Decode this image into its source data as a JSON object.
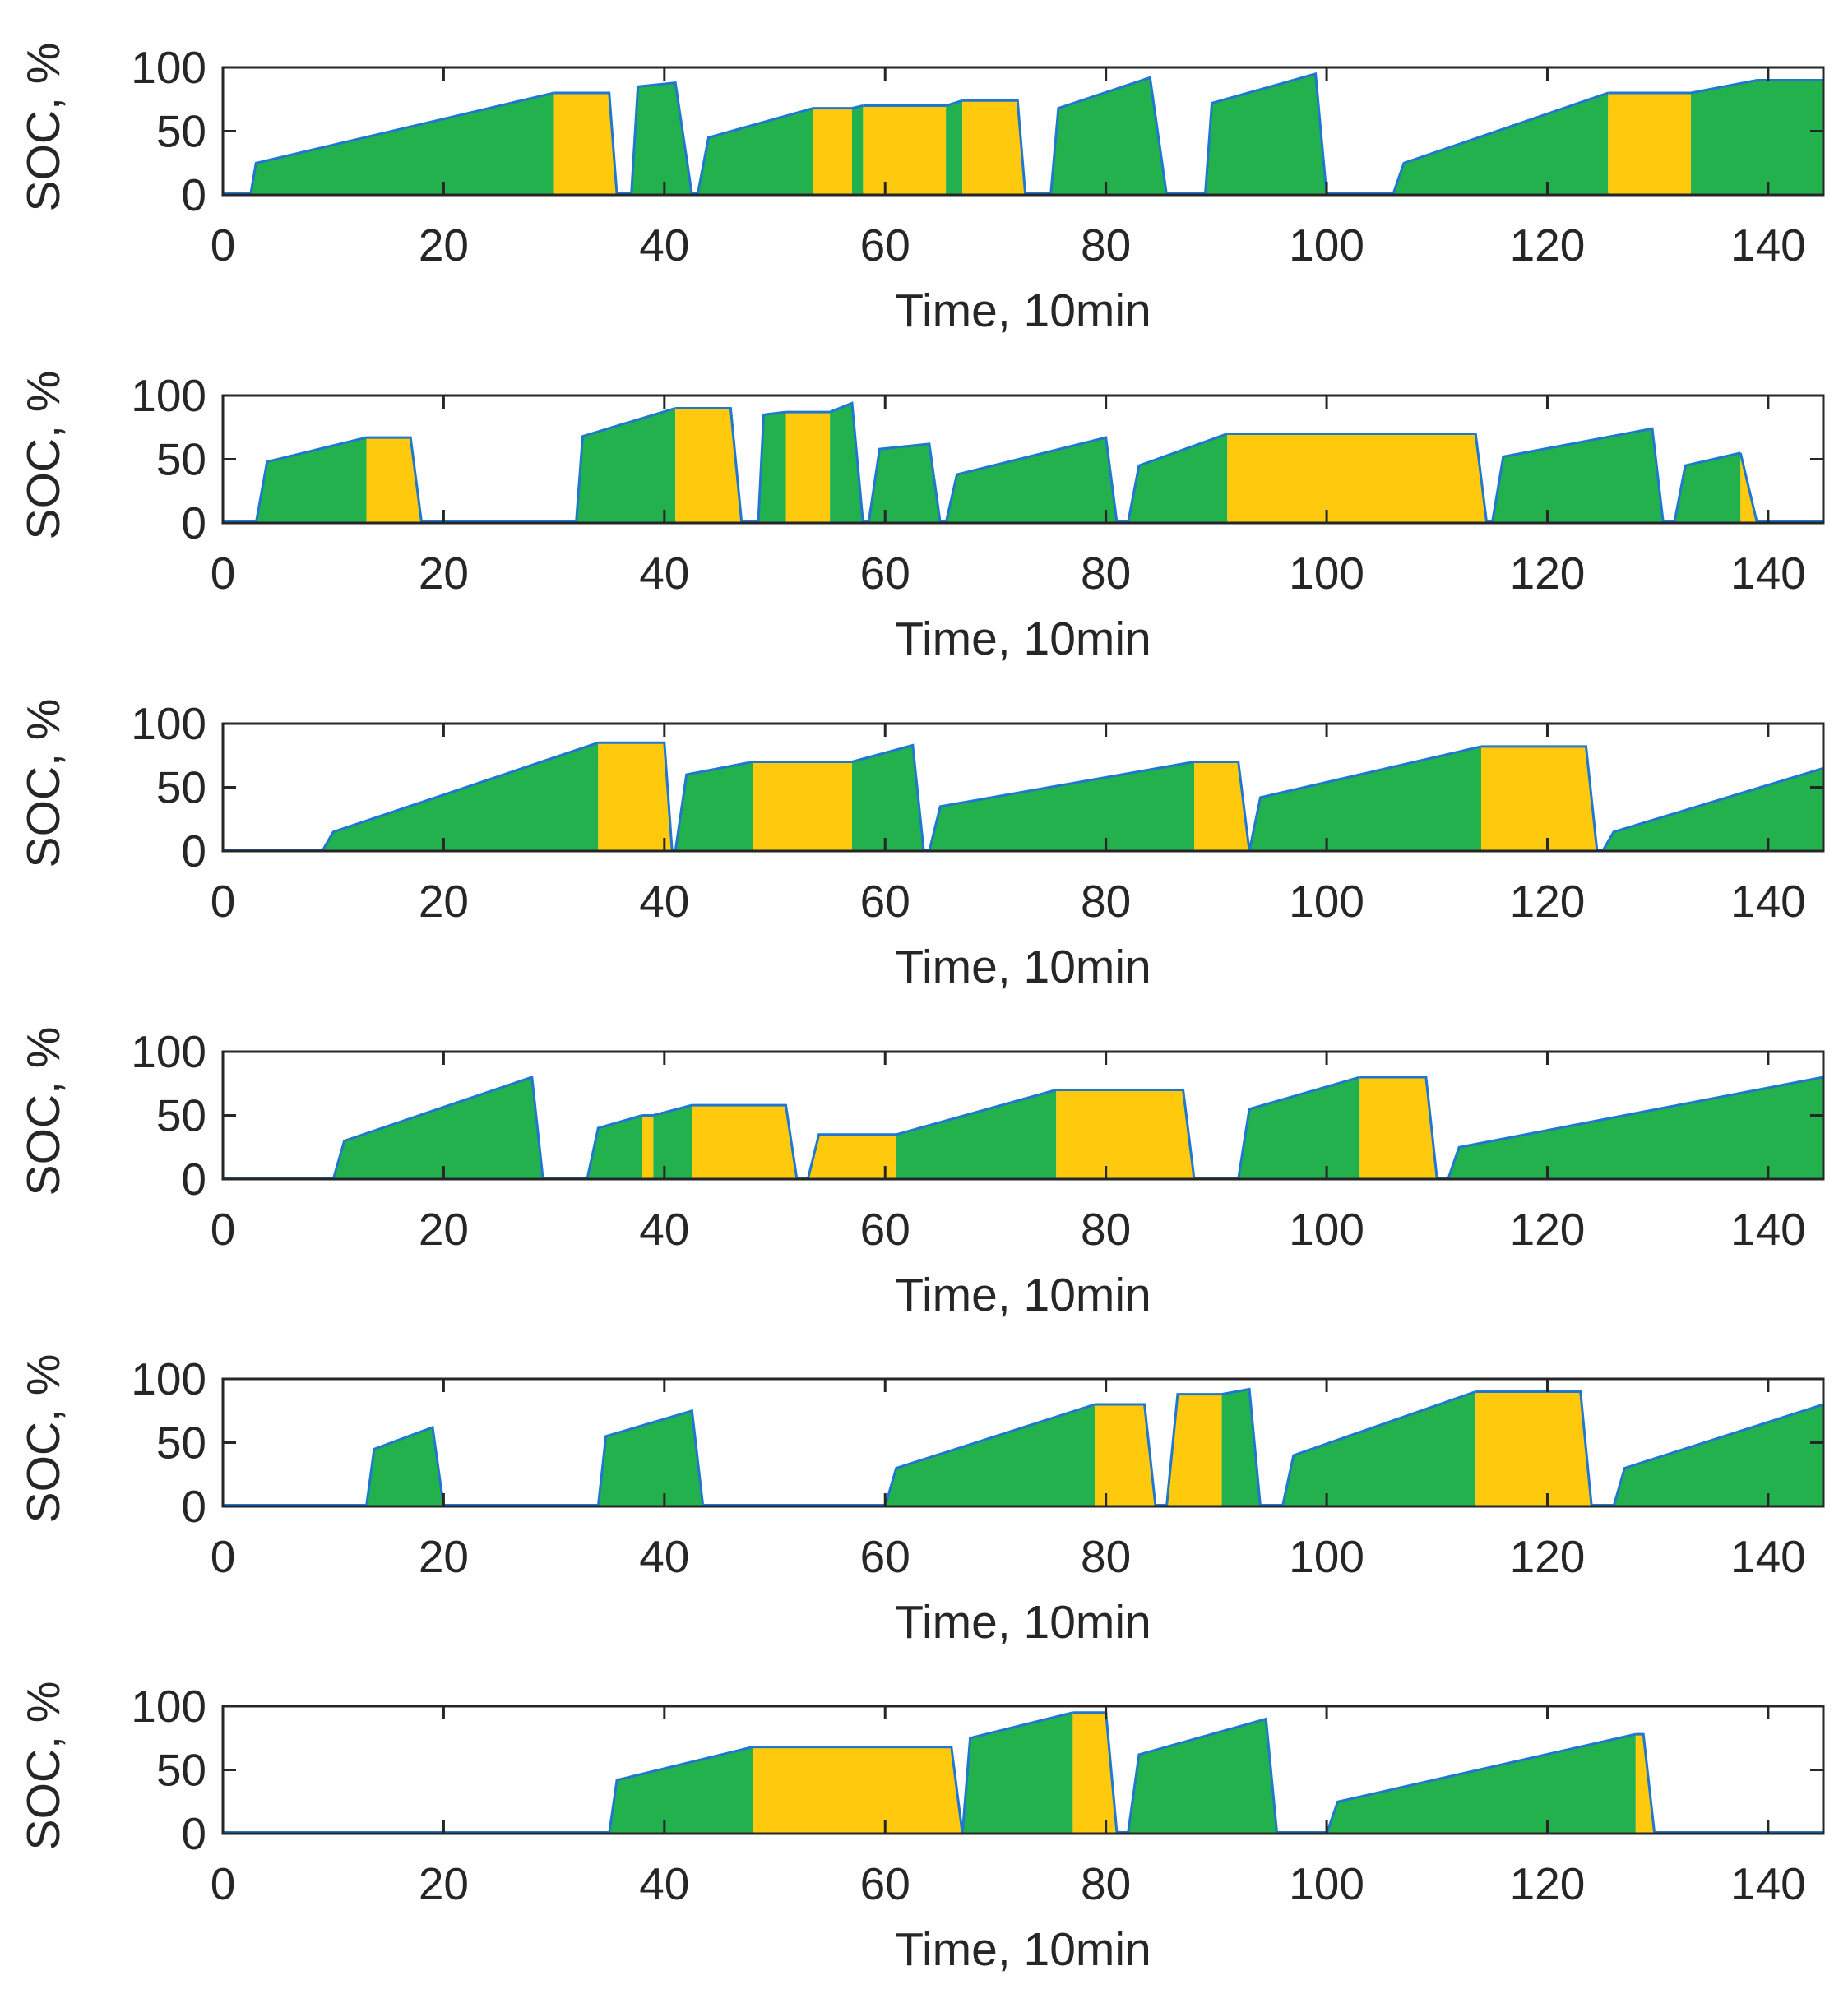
{
  "chart_data": {
    "type": "area",
    "colors": {
      "charging": "#22b14c",
      "idle": "#ffc90e",
      "outline": "#1f77d0",
      "axis": "#262626"
    },
    "legend": {
      "charging": "green fill",
      "idle": "yellow fill"
    },
    "panels": [
      {
        "xlabel": "Time, 10min",
        "ylabel": "SOC, %",
        "xlim": [
          0,
          145
        ],
        "ylim": [
          0,
          100
        ],
        "xticks": [
          "0",
          "20",
          "40",
          "60",
          "80",
          "100",
          "120",
          "140"
        ],
        "yticks": [
          "0",
          "50",
          "100"
        ],
        "segments": [
          {
            "x": [
              2.5,
              3,
              30,
              30
            ],
            "y": [
              0,
              25,
              80,
              80
            ],
            "state": "charging"
          },
          {
            "x": [
              30,
              35,
              35.7
            ],
            "y": [
              80,
              80,
              0
            ],
            "state": "idle"
          },
          {
            "x": [
              37,
              37.6,
              41,
              42.5
            ],
            "y": [
              0,
              85,
              88,
              0
            ],
            "state": "charging"
          },
          {
            "x": [
              43,
              44,
              53.5
            ],
            "y": [
              0,
              45,
              68
            ],
            "state": "charging"
          },
          {
            "x": [
              53.5,
              57
            ],
            "y": [
              68,
              68
            ],
            "state": "idle"
          },
          {
            "x": [
              57,
              58
            ],
            "y": [
              68,
              70
            ],
            "state": "charging"
          },
          {
            "x": [
              58,
              65.5
            ],
            "y": [
              70,
              70
            ],
            "state": "idle"
          },
          {
            "x": [
              65.5,
              67
            ],
            "y": [
              70,
              74
            ],
            "state": "charging"
          },
          {
            "x": [
              67,
              72,
              72.7
            ],
            "y": [
              74,
              74,
              0
            ],
            "state": "idle"
          },
          {
            "x": [
              75,
              75.7,
              84,
              85.5
            ],
            "y": [
              0,
              68,
              92,
              0
            ],
            "state": "charging"
          },
          {
            "x": [
              89,
              89.6,
              99,
              100
            ],
            "y": [
              0,
              72,
              95,
              0
            ],
            "state": "charging"
          },
          {
            "x": [
              106,
              107,
              125.5
            ],
            "y": [
              0,
              25,
              80
            ],
            "state": "charging"
          },
          {
            "x": [
              125.5,
              133
            ],
            "y": [
              80,
              80
            ],
            "state": "idle"
          },
          {
            "x": [
              133,
              139,
              145
            ],
            "y": [
              80,
              90,
              90
            ],
            "state": "charging"
          }
        ]
      },
      {
        "xlabel": "Time, 10min",
        "ylabel": "SOC, %",
        "xlim": [
          0,
          145
        ],
        "ylim": [
          0,
          100
        ],
        "xticks": [
          "0",
          "20",
          "40",
          "60",
          "80",
          "100",
          "120",
          "140"
        ],
        "yticks": [
          "0",
          "50",
          "100"
        ],
        "segments": [
          {
            "x": [
              3,
              4,
              13
            ],
            "y": [
              0,
              48,
              67
            ],
            "state": "charging"
          },
          {
            "x": [
              13,
              17,
              18
            ],
            "y": [
              67,
              67,
              0
            ],
            "state": "idle"
          },
          {
            "x": [
              32,
              32.6,
              41
            ],
            "y": [
              0,
              68,
              90
            ],
            "state": "charging"
          },
          {
            "x": [
              41,
              46,
              47
            ],
            "y": [
              90,
              90,
              0
            ],
            "state": "idle"
          },
          {
            "x": [
              48.5,
              49,
              51
            ],
            "y": [
              0,
              85,
              87
            ],
            "state": "charging"
          },
          {
            "x": [
              51,
              55
            ],
            "y": [
              87,
              87
            ],
            "state": "idle"
          },
          {
            "x": [
              55,
              57,
              58
            ],
            "y": [
              87,
              94,
              0
            ],
            "state": "charging"
          },
          {
            "x": [
              58.5,
              59.5,
              64,
              65
            ],
            "y": [
              0,
              58,
              62,
              0
            ],
            "state": "charging"
          },
          {
            "x": [
              65.5,
              66.5,
              80,
              81
            ],
            "y": [
              0,
              38,
              67,
              0
            ],
            "state": "charging"
          },
          {
            "x": [
              82,
              83,
              91
            ],
            "y": [
              0,
              45,
              70
            ],
            "state": "charging"
          },
          {
            "x": [
              91,
              113.5,
              114.5
            ],
            "y": [
              70,
              70,
              0
            ],
            "state": "idle"
          },
          {
            "x": [
              115,
              116,
              129.5,
              130.5
            ],
            "y": [
              0,
              52,
              74,
              0
            ],
            "state": "charging"
          },
          {
            "x": [
              131.5,
              132.5,
              137.5
            ],
            "y": [
              0,
              45,
              55
            ],
            "state": "charging"
          },
          {
            "x": [
              137.5,
              139
            ],
            "y": [
              55,
              0
            ],
            "state": "idle"
          }
        ]
      },
      {
        "xlabel": "Time, 10min",
        "ylabel": "SOC, %",
        "xlim": [
          0,
          145
        ],
        "ylim": [
          0,
          100
        ],
        "xticks": [
          "0",
          "20",
          "40",
          "60",
          "80",
          "100",
          "120",
          "140"
        ],
        "yticks": [
          "0",
          "50",
          "100"
        ],
        "segments": [
          {
            "x": [
              9,
              10,
              34
            ],
            "y": [
              0,
              15,
              85
            ],
            "state": "charging"
          },
          {
            "x": [
              34,
              40,
              40.7
            ],
            "y": [
              85,
              85,
              0
            ],
            "state": "idle"
          },
          {
            "x": [
              41,
              42,
              48
            ],
            "y": [
              0,
              60,
              70
            ],
            "state": "charging"
          },
          {
            "x": [
              48,
              57
            ],
            "y": [
              70,
              70
            ],
            "state": "idle"
          },
          {
            "x": [
              57,
              62.5,
              63.5
            ],
            "y": [
              70,
              83,
              0
            ],
            "state": "charging"
          },
          {
            "x": [
              64,
              65,
              88
            ],
            "y": [
              0,
              35,
              70
            ],
            "state": "charging"
          },
          {
            "x": [
              88,
              92,
              93
            ],
            "y": [
              70,
              70,
              0
            ],
            "state": "idle"
          },
          {
            "x": [
              93,
              94,
              114
            ],
            "y": [
              0,
              42,
              82
            ],
            "state": "charging"
          },
          {
            "x": [
              114,
              123.5,
              124.5
            ],
            "y": [
              82,
              82,
              0
            ],
            "state": "idle"
          },
          {
            "x": [
              125,
              126,
              145
            ],
            "y": [
              0,
              15,
              65
            ],
            "state": "charging"
          }
        ]
      },
      {
        "xlabel": "Time, 10min",
        "ylabel": "SOC, %",
        "xlim": [
          0,
          145
        ],
        "ylim": [
          0,
          100
        ],
        "xticks": [
          "0",
          "20",
          "40",
          "60",
          "80",
          "100",
          "120",
          "140"
        ],
        "yticks": [
          "0",
          "50",
          "100"
        ],
        "segments": [
          {
            "x": [
              10,
              11,
              28,
              29
            ],
            "y": [
              0,
              30,
              80,
              0
            ],
            "state": "charging"
          },
          {
            "x": [
              33,
              34,
              38
            ],
            "y": [
              0,
              40,
              50
            ],
            "state": "charging"
          },
          {
            "x": [
              38,
              39
            ],
            "y": [
              50,
              50
            ],
            "state": "idle"
          },
          {
            "x": [
              39,
              42.5
            ],
            "y": [
              50,
              58
            ],
            "state": "charging"
          },
          {
            "x": [
              42.5,
              51,
              52
            ],
            "y": [
              58,
              58,
              0
            ],
            "state": "idle"
          },
          {
            "x": [
              53,
              54,
              61
            ],
            "y": [
              0,
              35,
              35
            ],
            "state": "idle"
          },
          {
            "x": [
              61,
              75.5
            ],
            "y": [
              35,
              70
            ],
            "state": "charging"
          },
          {
            "x": [
              75.5,
              87,
              88
            ],
            "y": [
              70,
              70,
              0
            ],
            "state": "idle"
          },
          {
            "x": [
              92,
              93,
              103
            ],
            "y": [
              0,
              55,
              80
            ],
            "state": "charging"
          },
          {
            "x": [
              103,
              109,
              110
            ],
            "y": [
              80,
              80,
              0
            ],
            "state": "idle"
          },
          {
            "x": [
              111,
              112,
              145
            ],
            "y": [
              0,
              25,
              80
            ],
            "state": "charging"
          }
        ]
      },
      {
        "xlabel": "Time, 10min",
        "ylabel": "SOC, %",
        "xlim": [
          0,
          145
        ],
        "ylim": [
          0,
          100
        ],
        "xticks": [
          "0",
          "20",
          "40",
          "60",
          "80",
          "100",
          "120",
          "140"
        ],
        "yticks": [
          "0",
          "50",
          "100"
        ],
        "segments": [
          {
            "x": [
              13,
              13.7,
              19,
              20
            ],
            "y": [
              0,
              45,
              62,
              0
            ],
            "state": "charging"
          },
          {
            "x": [
              34,
              34.7,
              42.5,
              43.5
            ],
            "y": [
              0,
              55,
              75,
              0
            ],
            "state": "charging"
          },
          {
            "x": [
              60,
              61,
              79
            ],
            "y": [
              0,
              30,
              80
            ],
            "state": "charging"
          },
          {
            "x": [
              79,
              83.5,
              84.5
            ],
            "y": [
              80,
              80,
              0
            ],
            "state": "idle"
          },
          {
            "x": [
              85.5,
              86.5,
              90.5
            ],
            "y": [
              0,
              88,
              88
            ],
            "state": "idle"
          },
          {
            "x": [
              90.5,
              93,
              94
            ],
            "y": [
              88,
              92,
              0
            ],
            "state": "charging"
          },
          {
            "x": [
              96,
              97,
              113.5
            ],
            "y": [
              0,
              40,
              90
            ],
            "state": "charging"
          },
          {
            "x": [
              113.5,
              123,
              124
            ],
            "y": [
              90,
              90,
              0
            ],
            "state": "idle"
          },
          {
            "x": [
              126,
              127,
              145
            ],
            "y": [
              0,
              30,
              80
            ],
            "state": "charging"
          }
        ]
      },
      {
        "xlabel": "Time, 10min",
        "ylabel": "SOC, %",
        "xlim": [
          0,
          145
        ],
        "ylim": [
          0,
          100
        ],
        "xticks": [
          "0",
          "20",
          "40",
          "60",
          "80",
          "100",
          "120",
          "140"
        ],
        "yticks": [
          "0",
          "50",
          "100"
        ],
        "segments": [
          {
            "x": [
              35,
              35.7,
              48
            ],
            "y": [
              0,
              42,
              68
            ],
            "state": "charging"
          },
          {
            "x": [
              48,
              66,
              67
            ],
            "y": [
              68,
              68,
              0
            ],
            "state": "idle"
          },
          {
            "x": [
              67,
              67.7,
              77
            ],
            "y": [
              0,
              75,
              95
            ],
            "state": "charging"
          },
          {
            "x": [
              77,
              80,
              81
            ],
            "y": [
              95,
              95,
              0
            ],
            "state": "idle"
          },
          {
            "x": [
              82,
              83,
              94.5,
              95.5
            ],
            "y": [
              0,
              62,
              90,
              0
            ],
            "state": "charging"
          },
          {
            "x": [
              100,
              101,
              128
            ],
            "y": [
              0,
              25,
              78
            ],
            "state": "charging"
          },
          {
            "x": [
              128,
              128.7,
              129.7
            ],
            "y": [
              78,
              78,
              0
            ],
            "state": "idle"
          }
        ]
      }
    ]
  }
}
